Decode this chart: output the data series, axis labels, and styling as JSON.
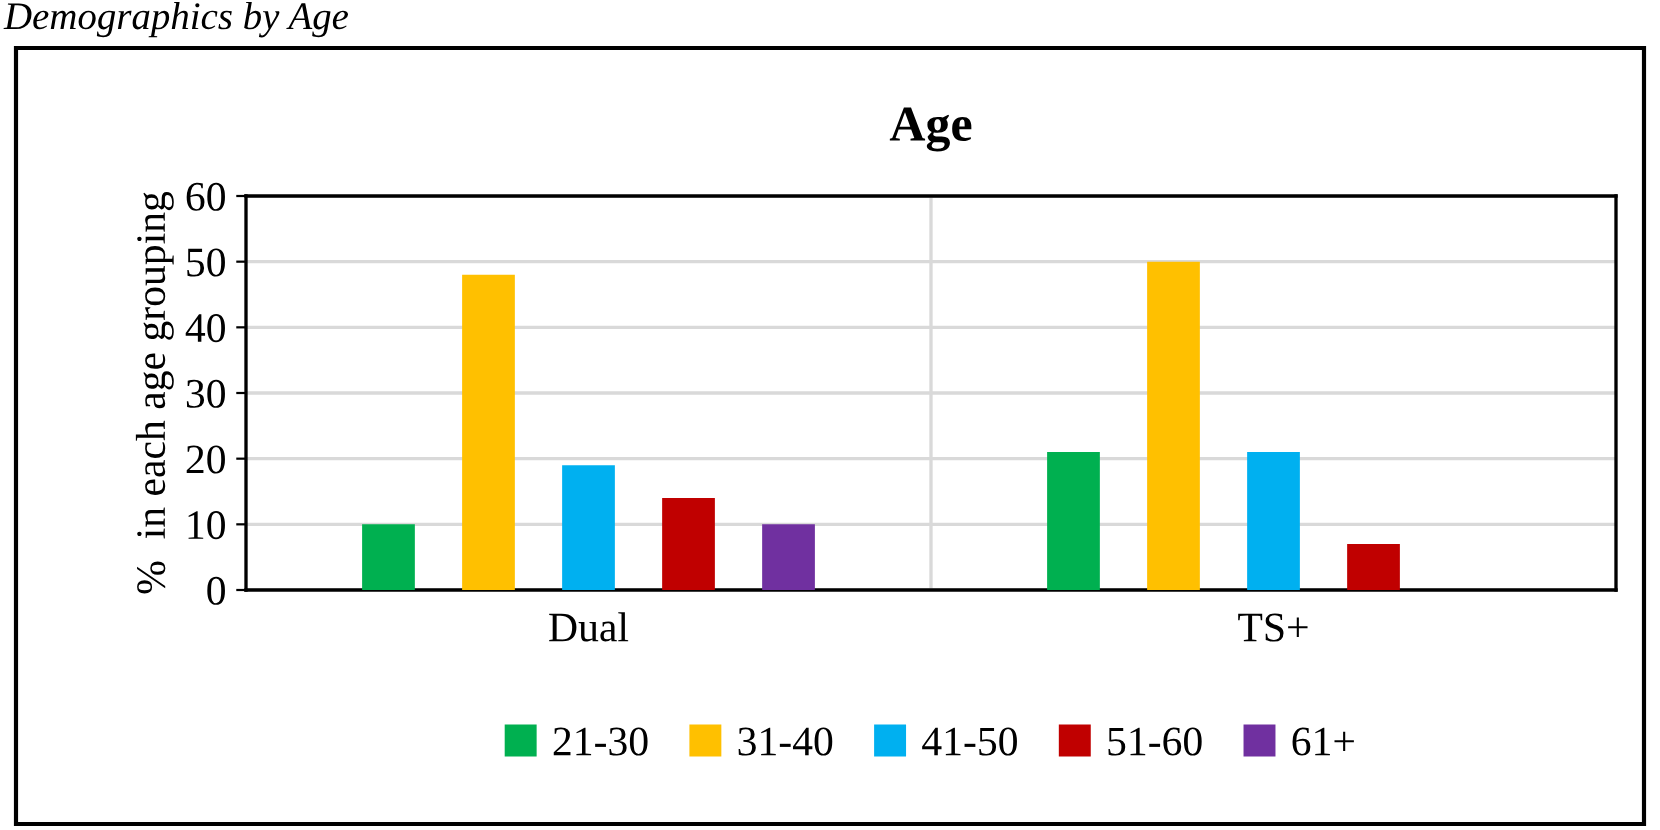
{
  "chart_data": {
    "type": "bar",
    "title": "Age",
    "ylabel": "%  in each age grouping",
    "annotations": [
      "Demographics by Age"
    ],
    "categories": [
      "Dual",
      "TS+"
    ],
    "series": [
      {
        "name": "21-30",
        "color": "#00b050",
        "values": [
          10,
          21
        ]
      },
      {
        "name": "31-40",
        "color": "#ffc000",
        "values": [
          48,
          50
        ]
      },
      {
        "name": "41-50",
        "color": "#00b0f0",
        "values": [
          19,
          21
        ]
      },
      {
        "name": "51-60",
        "color": "#c00000",
        "values": [
          14,
          7
        ]
      },
      {
        "name": "61+",
        "color": "#7030a0",
        "values": [
          10,
          0
        ]
      }
    ],
    "ylim": [
      0,
      60
    ],
    "yticks": [
      0,
      10,
      20,
      30,
      40,
      50,
      60
    ],
    "grid": true,
    "legend": "bottom"
  }
}
